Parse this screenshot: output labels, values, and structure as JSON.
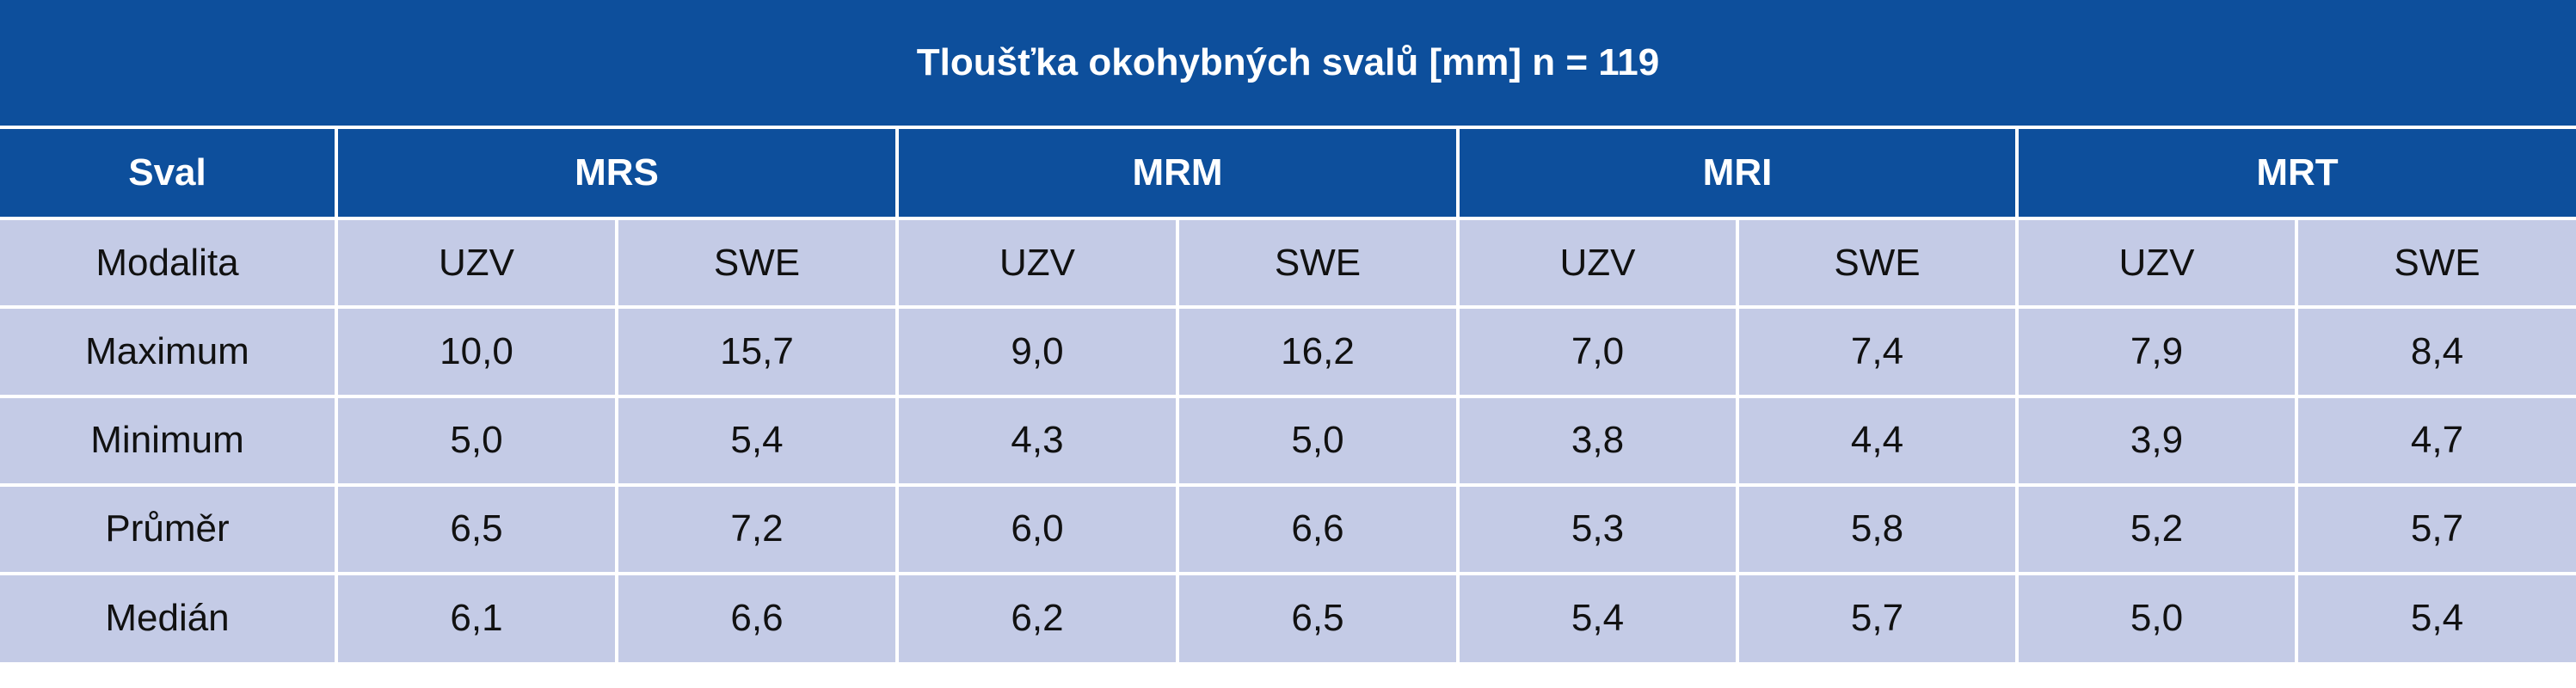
{
  "table": {
    "title": "Tloušťka okohybných svalů [mm] n = 119",
    "header": {
      "label": "Sval",
      "muscles": [
        "MRS",
        "MRM",
        "MRI",
        "MRT"
      ]
    },
    "modality_row": {
      "label": "Modalita",
      "values": [
        "UZV",
        "SWE",
        "UZV",
        "SWE",
        "UZV",
        "SWE",
        "UZV",
        "SWE"
      ]
    },
    "rows": [
      {
        "label": "Maximum",
        "values": [
          "10,0",
          "15,7",
          "9,0",
          "16,2",
          "7,0",
          "7,4",
          "7,9",
          "8,4"
        ]
      },
      {
        "label": "Minimum",
        "values": [
          "5,0",
          "5,4",
          "4,3",
          "5,0",
          "3,8",
          "4,4",
          "3,9",
          "4,7"
        ]
      },
      {
        "label": "Průměr",
        "values": [
          "6,5",
          "7,2",
          "6,0",
          "6,6",
          "5,3",
          "5,8",
          "5,2",
          "5,7"
        ]
      },
      {
        "label": "Medián",
        "values": [
          "6,1",
          "6,6",
          "6,2",
          "6,5",
          "5,4",
          "5,7",
          "5,0",
          "5,4"
        ]
      }
    ]
  },
  "colors": {
    "header_blue": "#0d4f9c",
    "body_lavender": "#c4cbe6",
    "grid_white": "#ffffff"
  }
}
